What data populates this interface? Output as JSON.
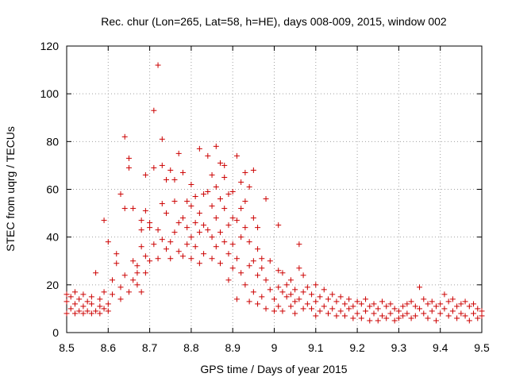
{
  "chart_data": {
    "type": "scatter",
    "title": "Rec. chur (Lon=265, Lat=58, h=HE), days 008-009, 2015, window 002",
    "xlabel": "GPS time / Days of year 2015",
    "ylabel": "STEC from uqrg / TECUs",
    "xlim": [
      8.5,
      9.5
    ],
    "ylim": [
      0,
      120
    ],
    "xticks": [
      "8.5",
      "8.6",
      "8.7",
      "8.8",
      "8.9",
      "9",
      "9.1",
      "9.2",
      "9.3",
      "9.4",
      "9.5"
    ],
    "yticks": [
      "0",
      "20",
      "40",
      "60",
      "80",
      "100",
      "120"
    ],
    "marker": "+",
    "color": "#cc0000",
    "series": [
      {
        "name": "STEC",
        "points": [
          [
            8.5,
            8
          ],
          [
            8.5,
            13
          ],
          [
            8.5,
            16
          ],
          [
            8.51,
            10
          ],
          [
            8.51,
            15
          ],
          [
            8.52,
            8
          ],
          [
            8.52,
            12
          ],
          [
            8.52,
            17
          ],
          [
            8.53,
            9
          ],
          [
            8.53,
            14
          ],
          [
            8.54,
            8
          ],
          [
            8.54,
            11
          ],
          [
            8.54,
            16
          ],
          [
            8.55,
            9
          ],
          [
            8.55,
            13
          ],
          [
            8.56,
            8
          ],
          [
            8.56,
            12
          ],
          [
            8.56,
            15
          ],
          [
            8.57,
            9
          ],
          [
            8.57,
            25
          ],
          [
            8.58,
            8
          ],
          [
            8.58,
            11
          ],
          [
            8.58,
            14
          ],
          [
            8.59,
            47
          ],
          [
            8.59,
            10
          ],
          [
            8.59,
            17
          ],
          [
            8.6,
            38
          ],
          [
            8.6,
            9
          ],
          [
            8.6,
            12
          ],
          [
            8.61,
            16
          ],
          [
            8.61,
            22
          ],
          [
            8.62,
            33
          ],
          [
            8.62,
            29
          ],
          [
            8.63,
            58
          ],
          [
            8.63,
            14
          ],
          [
            8.63,
            19
          ],
          [
            8.64,
            82
          ],
          [
            8.64,
            52
          ],
          [
            8.64,
            24
          ],
          [
            8.65,
            73
          ],
          [
            8.65,
            69
          ],
          [
            8.65,
            17
          ],
          [
            8.66,
            52
          ],
          [
            8.66,
            30
          ],
          [
            8.66,
            22
          ],
          [
            8.67,
            28
          ],
          [
            8.67,
            25
          ],
          [
            8.67,
            20
          ],
          [
            8.68,
            47
          ],
          [
            8.68,
            43
          ],
          [
            8.68,
            36
          ],
          [
            8.68,
            17
          ],
          [
            8.69,
            66
          ],
          [
            8.69,
            51
          ],
          [
            8.69,
            32
          ],
          [
            8.69,
            25
          ],
          [
            8.7,
            46
          ],
          [
            8.7,
            44
          ],
          [
            8.7,
            30
          ],
          [
            8.71,
            93
          ],
          [
            8.71,
            69
          ],
          [
            8.71,
            37
          ],
          [
            8.72,
            112
          ],
          [
            8.72,
            43
          ],
          [
            8.72,
            31
          ],
          [
            8.73,
            81
          ],
          [
            8.73,
            70
          ],
          [
            8.73,
            54
          ],
          [
            8.73,
            39
          ],
          [
            8.74,
            64
          ],
          [
            8.74,
            50
          ],
          [
            8.74,
            35
          ],
          [
            8.75,
            68
          ],
          [
            8.75,
            38
          ],
          [
            8.75,
            31
          ],
          [
            8.76,
            64
          ],
          [
            8.76,
            55
          ],
          [
            8.76,
            42
          ],
          [
            8.77,
            75
          ],
          [
            8.77,
            46
          ],
          [
            8.77,
            34
          ],
          [
            8.78,
            67
          ],
          [
            8.78,
            48
          ],
          [
            8.78,
            32
          ],
          [
            8.79,
            55
          ],
          [
            8.79,
            44
          ],
          [
            8.79,
            37
          ],
          [
            8.8,
            62
          ],
          [
            8.8,
            53
          ],
          [
            8.8,
            40
          ],
          [
            8.8,
            31
          ],
          [
            8.81,
            57
          ],
          [
            8.81,
            46
          ],
          [
            8.81,
            36
          ],
          [
            8.82,
            77
          ],
          [
            8.82,
            50
          ],
          [
            8.82,
            42
          ],
          [
            8.82,
            29
          ],
          [
            8.83,
            58
          ],
          [
            8.83,
            45
          ],
          [
            8.83,
            33
          ],
          [
            8.84,
            74
          ],
          [
            8.84,
            59
          ],
          [
            8.84,
            43
          ],
          [
            8.85,
            66
          ],
          [
            8.85,
            53
          ],
          [
            8.85,
            40
          ],
          [
            8.85,
            31
          ],
          [
            8.86,
            78
          ],
          [
            8.86,
            61
          ],
          [
            8.86,
            48
          ],
          [
            8.86,
            36
          ],
          [
            8.87,
            71
          ],
          [
            8.87,
            56
          ],
          [
            8.87,
            42
          ],
          [
            8.87,
            29
          ],
          [
            8.88,
            70
          ],
          [
            8.88,
            65
          ],
          [
            8.88,
            52
          ],
          [
            8.88,
            38
          ],
          [
            8.89,
            58
          ],
          [
            8.89,
            45
          ],
          [
            8.89,
            33
          ],
          [
            8.89,
            22
          ],
          [
            8.9,
            59
          ],
          [
            8.9,
            48
          ],
          [
            8.9,
            37
          ],
          [
            8.9,
            27
          ],
          [
            8.91,
            74
          ],
          [
            8.91,
            47
          ],
          [
            8.91,
            31
          ],
          [
            8.91,
            14
          ],
          [
            8.92,
            63
          ],
          [
            8.92,
            52
          ],
          [
            8.92,
            40
          ],
          [
            8.92,
            25
          ],
          [
            8.93,
            67
          ],
          [
            8.93,
            55
          ],
          [
            8.93,
            44
          ],
          [
            8.93,
            20
          ],
          [
            8.94,
            61
          ],
          [
            8.94,
            38
          ],
          [
            8.94,
            28
          ],
          [
            8.94,
            13
          ],
          [
            8.95,
            68
          ],
          [
            8.95,
            48
          ],
          [
            8.95,
            30
          ],
          [
            8.95,
            17
          ],
          [
            8.96,
            44
          ],
          [
            8.96,
            35
          ],
          [
            8.96,
            24
          ],
          [
            8.96,
            12
          ],
          [
            8.97,
            31
          ],
          [
            8.97,
            27
          ],
          [
            8.97,
            15
          ],
          [
            8.98,
            56
          ],
          [
            8.98,
            22
          ],
          [
            8.98,
            10
          ],
          [
            8.99,
            30
          ],
          [
            8.99,
            18
          ],
          [
            9.0,
            14
          ],
          [
            9.0,
            9
          ],
          [
            9.01,
            45
          ],
          [
            9.01,
            26
          ],
          [
            9.01,
            19
          ],
          [
            9.01,
            11
          ],
          [
            9.02,
            25
          ],
          [
            9.02,
            17
          ],
          [
            9.02,
            9
          ],
          [
            9.03,
            20
          ],
          [
            9.03,
            15
          ],
          [
            9.04,
            22
          ],
          [
            9.04,
            16
          ],
          [
            9.04,
            11
          ],
          [
            9.05,
            18
          ],
          [
            9.05,
            13
          ],
          [
            9.05,
            8
          ],
          [
            9.06,
            37
          ],
          [
            9.06,
            27
          ],
          [
            9.06,
            14
          ],
          [
            9.07,
            24
          ],
          [
            9.07,
            17
          ],
          [
            9.07,
            10
          ],
          [
            9.08,
            19
          ],
          [
            9.08,
            12
          ],
          [
            9.09,
            16
          ],
          [
            9.09,
            10
          ],
          [
            9.1,
            20
          ],
          [
            9.1,
            13
          ],
          [
            9.1,
            7
          ],
          [
            9.11,
            15
          ],
          [
            9.11,
            9
          ],
          [
            9.12,
            18
          ],
          [
            9.12,
            11
          ],
          [
            9.13,
            14
          ],
          [
            9.13,
            8
          ],
          [
            9.14,
            16
          ],
          [
            9.14,
            10
          ],
          [
            9.15,
            13
          ],
          [
            9.15,
            7
          ],
          [
            9.16,
            15
          ],
          [
            9.16,
            9
          ],
          [
            9.17,
            12
          ],
          [
            9.17,
            7
          ],
          [
            9.18,
            14
          ],
          [
            9.18,
            10
          ],
          [
            9.19,
            11
          ],
          [
            9.19,
            6
          ],
          [
            9.2,
            13
          ],
          [
            9.2,
            8
          ],
          [
            9.21,
            12
          ],
          [
            9.21,
            6
          ],
          [
            9.22,
            14
          ],
          [
            9.22,
            9
          ],
          [
            9.23,
            11
          ],
          [
            9.23,
            5
          ],
          [
            9.24,
            12
          ],
          [
            9.24,
            8
          ],
          [
            9.25,
            10
          ],
          [
            9.25,
            5
          ],
          [
            9.26,
            13
          ],
          [
            9.26,
            7
          ],
          [
            9.27,
            11
          ],
          [
            9.27,
            6
          ],
          [
            9.28,
            12
          ],
          [
            9.28,
            8
          ],
          [
            9.29,
            10
          ],
          [
            9.29,
            5
          ],
          [
            9.3,
            9
          ],
          [
            9.3,
            6
          ],
          [
            9.31,
            11
          ],
          [
            9.31,
            7
          ],
          [
            9.32,
            12
          ],
          [
            9.32,
            8
          ],
          [
            9.33,
            13
          ],
          [
            9.33,
            6
          ],
          [
            9.34,
            11
          ],
          [
            9.34,
            7
          ],
          [
            9.35,
            19
          ],
          [
            9.35,
            10
          ],
          [
            9.36,
            14
          ],
          [
            9.36,
            8
          ],
          [
            9.37,
            12
          ],
          [
            9.37,
            6
          ],
          [
            9.38,
            13
          ],
          [
            9.38,
            9
          ],
          [
            9.39,
            11
          ],
          [
            9.39,
            5
          ],
          [
            9.4,
            12
          ],
          [
            9.4,
            8
          ],
          [
            9.41,
            16
          ],
          [
            9.41,
            10
          ],
          [
            9.42,
            13
          ],
          [
            9.42,
            7
          ],
          [
            9.43,
            14
          ],
          [
            9.43,
            9
          ],
          [
            9.44,
            11
          ],
          [
            9.44,
            6
          ],
          [
            9.45,
            12
          ],
          [
            9.45,
            8
          ],
          [
            9.46,
            13
          ],
          [
            9.46,
            7
          ],
          [
            9.47,
            11
          ],
          [
            9.47,
            5
          ],
          [
            9.48,
            12
          ],
          [
            9.48,
            8
          ],
          [
            9.49,
            10
          ],
          [
            9.49,
            6
          ],
          [
            9.5,
            9
          ],
          [
            9.5,
            7
          ]
        ]
      }
    ]
  }
}
